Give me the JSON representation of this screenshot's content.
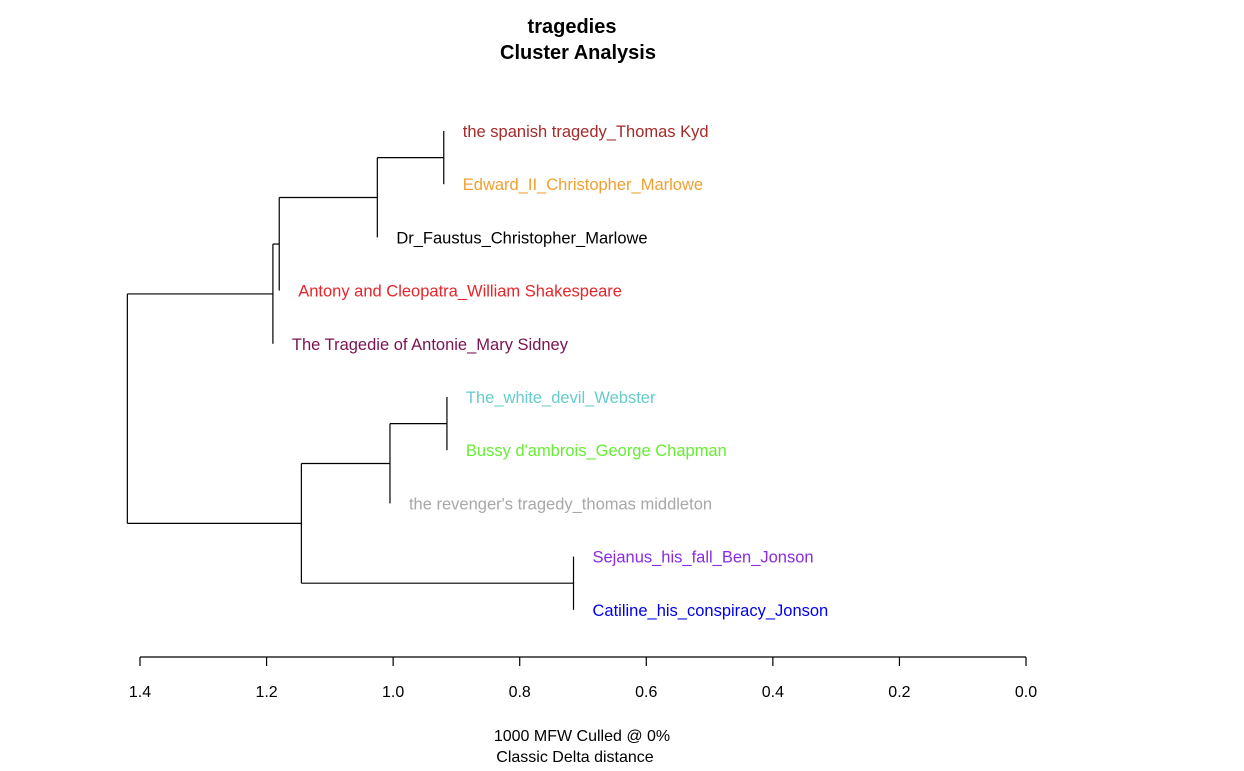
{
  "chart_data": {
    "type": "dendrogram",
    "title": "tragedies",
    "subtitle": "Cluster Analysis",
    "xlabel_line1": "1000 MFW  Culled @ 0%",
    "xlabel_line2": "Classic Delta distance",
    "xlim": [
      1.4,
      0.0
    ],
    "x_ticks": [
      1.4,
      1.2,
      1.0,
      0.8,
      0.6,
      0.4,
      0.2,
      0.0
    ],
    "x_tick_labels": [
      "1.4",
      "1.2",
      "1.0",
      "0.8",
      "0.6",
      "0.4",
      "0.2",
      "0.0"
    ],
    "leaves": [
      {
        "id": "kyd",
        "label": "the spanish tragedy_Thomas Kyd",
        "color": "#a52a2a"
      },
      {
        "id": "edward",
        "label": "Edward_II_Christopher_Marlowe",
        "color": "#f0a030"
      },
      {
        "id": "faustus",
        "label": "Dr_Faustus_Christopher_Marlowe",
        "color": "#000000"
      },
      {
        "id": "antony",
        "label": "Antony and Cleopatra_William Shakespeare",
        "color": "#e8242a"
      },
      {
        "id": "antonie",
        "label": "The Tragedie of Antonie_Mary Sidney",
        "color": "#7a1350"
      },
      {
        "id": "whitedevil",
        "label": "The_white_devil_Webster",
        "color": "#66cccc"
      },
      {
        "id": "bussy",
        "label": "Bussy d'ambrois_George Chapman",
        "color": "#66ee33"
      },
      {
        "id": "revenger",
        "label": "the revenger's tragedy_thomas middleton",
        "color": "#a8a8a8"
      },
      {
        "id": "sejanus",
        "label": "Sejanus_his_fall_Ben_Jonson",
        "color": "#8a2be2"
      },
      {
        "id": "catiline",
        "label": "Catiline_his_conspiracy_Jonson",
        "color": "#0000ee"
      }
    ],
    "merges": [
      {
        "id": "m1",
        "children": [
          "kyd",
          "edward"
        ],
        "height": 0.92
      },
      {
        "id": "m2",
        "children": [
          "m1",
          "faustus"
        ],
        "height": 1.025
      },
      {
        "id": "m3",
        "children": [
          "m2",
          "antony"
        ],
        "height": 1.18
      },
      {
        "id": "m4",
        "children": [
          "m3",
          "antonie"
        ],
        "height": 1.19
      },
      {
        "id": "m5",
        "children": [
          "whitedevil",
          "bussy"
        ],
        "height": 0.915
      },
      {
        "id": "m6",
        "children": [
          "m5",
          "revenger"
        ],
        "height": 1.005
      },
      {
        "id": "m7",
        "children": [
          "sejanus",
          "catiline"
        ],
        "height": 0.715
      },
      {
        "id": "m8",
        "children": [
          "m6",
          "m7"
        ],
        "height": 1.145
      },
      {
        "id": "m9",
        "children": [
          "m4",
          "m8"
        ],
        "height": 1.42
      }
    ]
  }
}
